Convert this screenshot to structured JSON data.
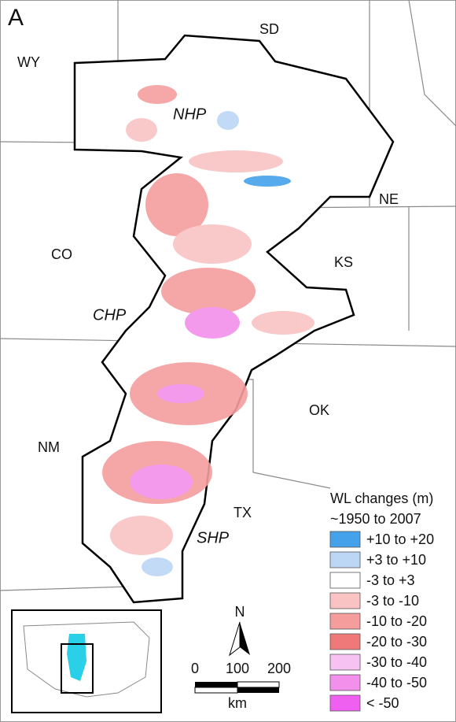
{
  "panel_label": "A",
  "map_labels": [
    "WY",
    "SD",
    "NHP",
    "NE",
    "CO",
    "KS",
    "CHP",
    "OK",
    "NM",
    "TX",
    "SHP"
  ],
  "legend": {
    "title": "WL changes (m)",
    "subtitle": "~1950 to 2007",
    "items": [
      {
        "label": "+10 to +20",
        "color": "#45a1ea"
      },
      {
        "label": "+3 to +10",
        "color": "#bcd6f6"
      },
      {
        "label": "-3 to +3",
        "color": "#ffffff"
      },
      {
        "label": "-3 to -10",
        "color": "#f9c3c3"
      },
      {
        "label": "-10 to -20",
        "color": "#f59d9d"
      },
      {
        "label": "-20 to -30",
        "color": "#ef7878"
      },
      {
        "label": "-30 to -40",
        "color": "#f6c2f2"
      },
      {
        "label": "-40 to -50",
        "color": "#f290ec"
      },
      {
        "label": "< -50",
        "color": "#ef5ff0"
      }
    ]
  },
  "north": "N",
  "scale_bar": {
    "ticks": [
      "0",
      "100",
      "200"
    ],
    "unit": "km"
  }
}
